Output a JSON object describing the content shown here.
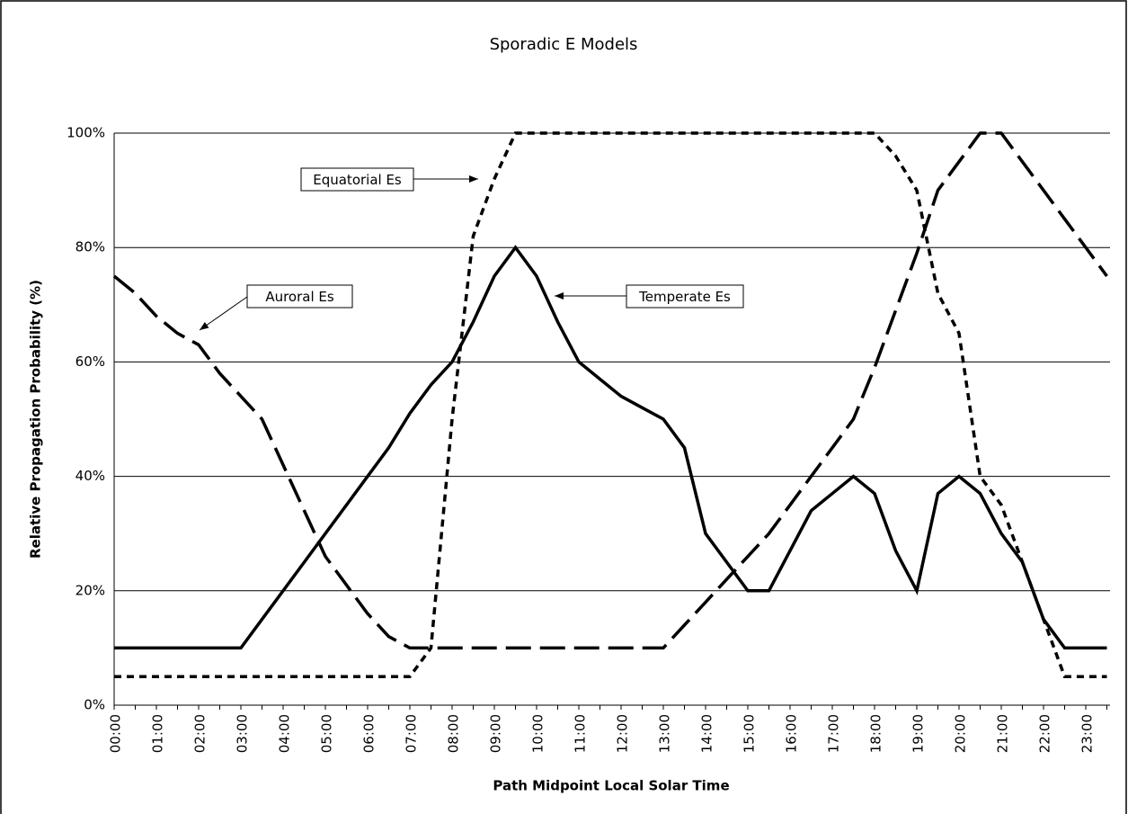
{
  "chart_data": {
    "type": "line",
    "title": "Sporadic E Models",
    "x_label": "Path Midpoint Local Solar Time",
    "y_label": "Relative Propagation Probability (%)",
    "categories": [
      "00:00",
      null,
      "01:00",
      null,
      "02:00",
      null,
      "03:00",
      null,
      "04:00",
      null,
      "05:00",
      null,
      "06:00",
      null,
      "07:00",
      null,
      "08:00",
      null,
      "09:00",
      null,
      "10:00",
      null,
      "11:00",
      null,
      "12:00",
      null,
      "13:00",
      null,
      "14:00",
      null,
      "15:00",
      null,
      "16:00",
      null,
      "17:00",
      null,
      "18:00",
      null,
      "19:00",
      null,
      "20:00",
      null,
      "21:00",
      null,
      "22:00",
      null,
      "23:00",
      null
    ],
    "series": [
      {
        "name": "Temperate Es",
        "color": "#000000",
        "dash": "solid",
        "values": [
          10,
          10,
          10,
          10,
          10,
          10,
          10,
          15,
          20,
          25,
          30,
          35,
          40,
          45,
          51,
          56,
          60,
          67,
          75,
          80,
          75,
          67,
          60,
          57,
          54,
          52,
          50,
          45,
          30,
          25,
          20,
          20,
          27,
          34,
          37,
          40,
          37,
          27,
          20,
          37,
          40,
          37,
          30,
          25,
          15,
          10,
          10,
          10
        ]
      },
      {
        "name": "Auroral Es",
        "color": "#000000",
        "dash": "long",
        "values": [
          75,
          72,
          68,
          65,
          63,
          58,
          54,
          50,
          42,
          34,
          26,
          21,
          16,
          12,
          10,
          10,
          10,
          10,
          10,
          10,
          10,
          10,
          10,
          10,
          10,
          10,
          10,
          14,
          18,
          22,
          26,
          30,
          35,
          40,
          45,
          50,
          59,
          69,
          79,
          90,
          95,
          100,
          100,
          95,
          90,
          85,
          80,
          75
        ]
      },
      {
        "name": "Equatorial Es",
        "color": "#000000",
        "dash": "short",
        "values": [
          5,
          5,
          5,
          5,
          5,
          5,
          5,
          5,
          5,
          5,
          5,
          5,
          5,
          5,
          5,
          10,
          50,
          82,
          92,
          100,
          100,
          100,
          100,
          100,
          100,
          100,
          100,
          100,
          100,
          100,
          100,
          100,
          100,
          100,
          100,
          100,
          100,
          96,
          90,
          72,
          65,
          40,
          35,
          25,
          15,
          5,
          5,
          5
        ]
      }
    ],
    "annotations": [
      "Equatorial Es",
      "Auroral Es",
      "Temperate Es"
    ],
    "ylim": [
      0,
      100
    ],
    "yticks": [
      {
        "value": 0,
        "label": "0%"
      },
      {
        "value": 20,
        "label": "20%"
      },
      {
        "value": 40,
        "label": "40%"
      },
      {
        "value": 60,
        "label": "60%"
      },
      {
        "value": 80,
        "label": "80%"
      },
      {
        "value": 100,
        "label": "100%"
      }
    ],
    "grid": true
  }
}
